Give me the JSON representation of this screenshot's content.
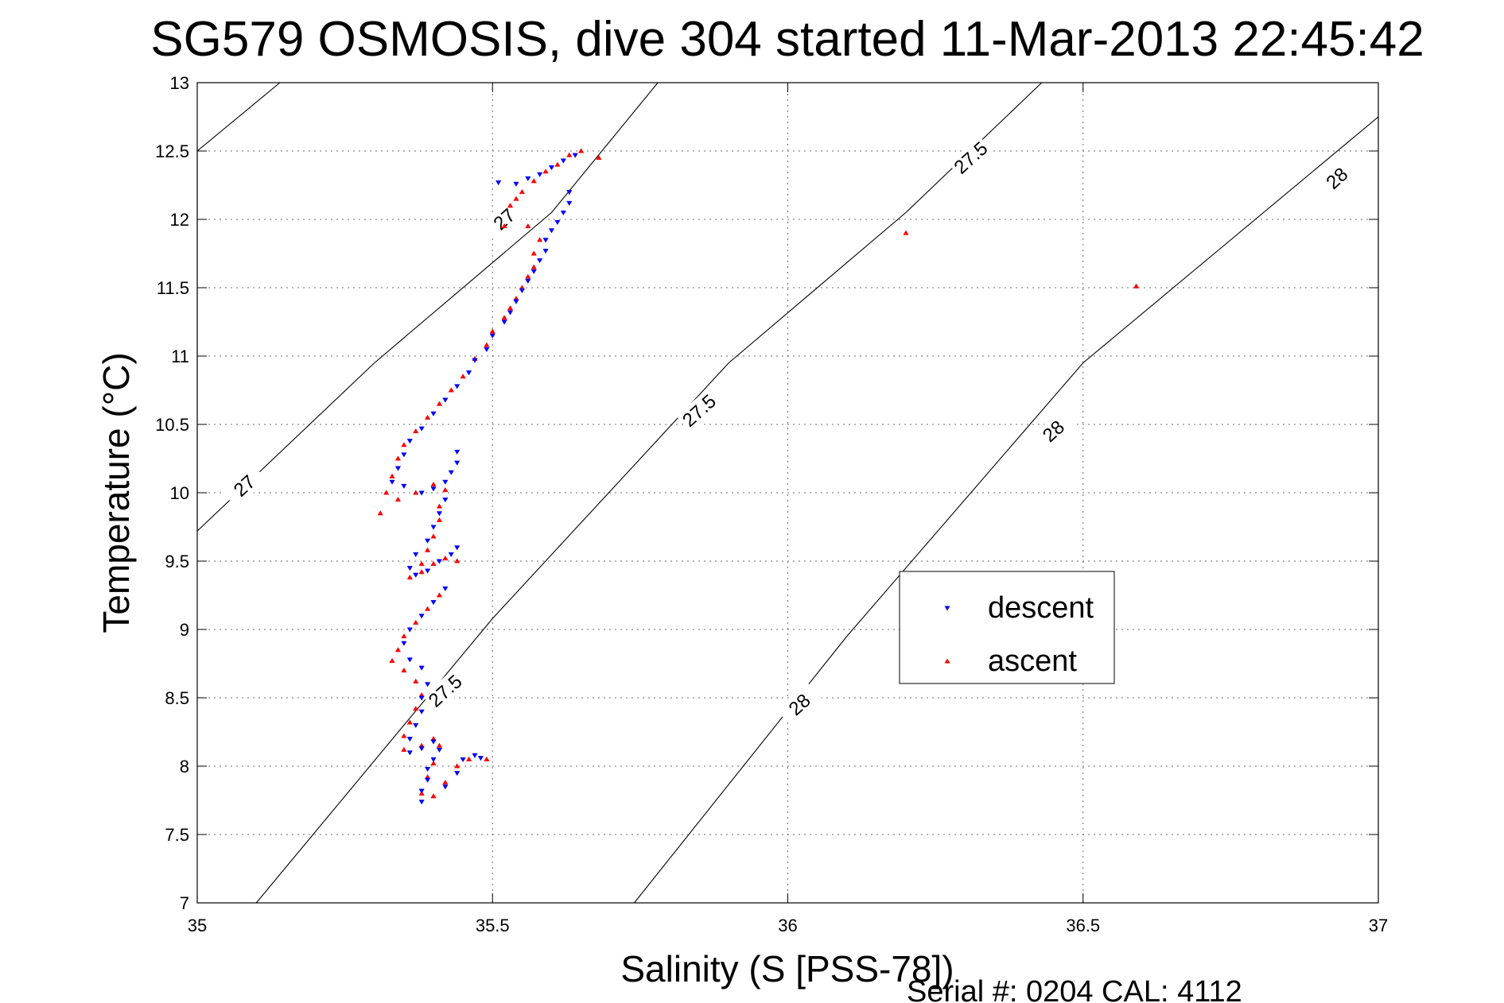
{
  "chart_data": {
    "type": "scatter",
    "title": "SG579 OSMOSIS, dive 304 started 11-Mar-2013 22:45:42",
    "xlabel": "Salinity (S [PSS-78])",
    "ylabel": "Temperature (°C)",
    "xlim": [
      35,
      37
    ],
    "ylim": [
      7,
      13
    ],
    "x_ticks": [
      "35",
      "35.5",
      "36",
      "36.5",
      "37"
    ],
    "y_ticks": [
      "7",
      "7.5",
      "8",
      "8.5",
      "9",
      "9.5",
      "10",
      "10.5",
      "11",
      "11.5",
      "12",
      "12.5",
      "13"
    ],
    "grid": true,
    "legend_position": "center-right",
    "footer": "Serial #: 0204  CAL: 4112",
    "colors": {
      "descent": "#0000ff",
      "ascent": "#ff0000"
    },
    "density_contours": [
      {
        "label": "27",
        "points": [
          [
            35.14,
            13.0
          ],
          [
            35.0,
            12.5
          ],
          [
            35.0,
            9.72
          ],
          [
            35.3,
            10.95
          ],
          [
            35.6,
            12.05
          ],
          [
            35.78,
            13.0
          ]
        ],
        "label_positions": [
          [
            35.08,
            10.05
          ],
          [
            35.52,
            12.0
          ]
        ]
      },
      {
        "label": "27.5",
        "points": [
          [
            35.1,
            7.0
          ],
          [
            35.5,
            9.08
          ],
          [
            35.9,
            10.95
          ],
          [
            36.2,
            12.05
          ],
          [
            36.43,
            13.0
          ]
        ],
        "label_positions": [
          [
            35.85,
            10.6
          ],
          [
            35.42,
            8.55
          ],
          [
            36.31,
            12.45
          ]
        ]
      },
      {
        "label": "28",
        "points": [
          [
            35.74,
            7.0
          ],
          [
            36.1,
            8.95
          ],
          [
            36.5,
            10.95
          ],
          [
            37.0,
            12.75
          ]
        ],
        "label_positions": [
          [
            36.02,
            8.45
          ],
          [
            36.45,
            10.45
          ],
          [
            36.93,
            12.3
          ]
        ]
      }
    ],
    "series": [
      {
        "name": "descent",
        "marker": "triangle-down",
        "points": [
          [
            35.64,
            12.47
          ],
          [
            35.62,
            12.43
          ],
          [
            35.6,
            12.38
          ],
          [
            35.58,
            12.33
          ],
          [
            35.56,
            12.3
          ],
          [
            35.54,
            12.26
          ],
          [
            35.51,
            12.27
          ],
          [
            35.63,
            12.2
          ],
          [
            35.63,
            12.12
          ],
          [
            35.62,
            12.05
          ],
          [
            35.61,
            11.98
          ],
          [
            35.6,
            11.92
          ],
          [
            35.59,
            11.85
          ],
          [
            35.59,
            11.77
          ],
          [
            35.58,
            11.7
          ],
          [
            35.57,
            11.62
          ],
          [
            35.56,
            11.55
          ],
          [
            35.55,
            11.48
          ],
          [
            35.54,
            11.4
          ],
          [
            35.53,
            11.32
          ],
          [
            35.52,
            11.25
          ],
          [
            35.5,
            11.15
          ],
          [
            35.49,
            11.05
          ],
          [
            35.47,
            10.97
          ],
          [
            35.46,
            10.88
          ],
          [
            35.44,
            10.78
          ],
          [
            35.42,
            10.68
          ],
          [
            35.4,
            10.58
          ],
          [
            35.38,
            10.47
          ],
          [
            35.36,
            10.38
          ],
          [
            35.35,
            10.28
          ],
          [
            35.34,
            10.18
          ],
          [
            35.33,
            10.08
          ],
          [
            35.35,
            10.05
          ],
          [
            35.38,
            10.0
          ],
          [
            35.4,
            10.03
          ],
          [
            35.42,
            10.08
          ],
          [
            35.43,
            10.15
          ],
          [
            35.44,
            10.22
          ],
          [
            35.44,
            10.3
          ],
          [
            35.42,
            9.95
          ],
          [
            35.41,
            9.85
          ],
          [
            35.4,
            9.75
          ],
          [
            35.39,
            9.65
          ],
          [
            35.37,
            9.55
          ],
          [
            35.36,
            9.45
          ],
          [
            35.37,
            9.4
          ],
          [
            35.39,
            9.43
          ],
          [
            35.41,
            9.5
          ],
          [
            35.43,
            9.55
          ],
          [
            35.44,
            9.6
          ],
          [
            35.42,
            9.3
          ],
          [
            35.4,
            9.2
          ],
          [
            35.38,
            9.1
          ],
          [
            35.36,
            9.0
          ],
          [
            35.35,
            8.9
          ],
          [
            35.36,
            8.78
          ],
          [
            35.38,
            8.72
          ],
          [
            35.39,
            8.6
          ],
          [
            35.38,
            8.5
          ],
          [
            35.38,
            8.4
          ],
          [
            35.37,
            8.3
          ],
          [
            35.36,
            8.2
          ],
          [
            35.36,
            8.1
          ],
          [
            35.38,
            8.13
          ],
          [
            35.4,
            8.18
          ],
          [
            35.41,
            8.12
          ],
          [
            35.4,
            8.05
          ],
          [
            35.39,
            7.98
          ],
          [
            35.39,
            7.9
          ],
          [
            35.38,
            7.82
          ],
          [
            35.38,
            7.74
          ],
          [
            35.42,
            7.85
          ],
          [
            35.44,
            7.95
          ],
          [
            35.45,
            8.05
          ],
          [
            35.47,
            8.08
          ],
          [
            35.48,
            8.06
          ]
        ]
      },
      {
        "name": "ascent",
        "marker": "triangle-up",
        "points": [
          [
            35.65,
            12.5
          ],
          [
            35.68,
            12.45
          ],
          [
            35.63,
            12.47
          ],
          [
            35.61,
            12.4
          ],
          [
            35.59,
            12.35
          ],
          [
            35.57,
            12.28
          ],
          [
            35.55,
            12.2
          ],
          [
            35.54,
            12.15
          ],
          [
            35.53,
            12.1
          ],
          [
            35.52,
            11.95
          ],
          [
            35.56,
            11.95
          ],
          [
            35.58,
            11.85
          ],
          [
            35.57,
            11.75
          ],
          [
            35.57,
            11.65
          ],
          [
            35.56,
            11.58
          ],
          [
            35.55,
            11.5
          ],
          [
            35.54,
            11.42
          ],
          [
            35.53,
            11.35
          ],
          [
            35.52,
            11.28
          ],
          [
            35.5,
            11.18
          ],
          [
            35.49,
            11.08
          ],
          [
            35.47,
            10.98
          ],
          [
            35.45,
            10.85
          ],
          [
            35.43,
            10.75
          ],
          [
            35.41,
            10.65
          ],
          [
            35.39,
            10.55
          ],
          [
            35.37,
            10.45
          ],
          [
            35.35,
            10.35
          ],
          [
            35.34,
            10.25
          ],
          [
            35.33,
            10.12
          ],
          [
            35.32,
            10.0
          ],
          [
            35.31,
            9.85
          ],
          [
            35.34,
            9.95
          ],
          [
            35.37,
            10.0
          ],
          [
            35.4,
            10.06
          ],
          [
            35.42,
            10.02
          ],
          [
            35.41,
            9.9
          ],
          [
            35.41,
            9.8
          ],
          [
            35.4,
            9.68
          ],
          [
            35.39,
            9.58
          ],
          [
            35.38,
            9.48
          ],
          [
            35.36,
            9.38
          ],
          [
            35.38,
            9.42
          ],
          [
            35.4,
            9.48
          ],
          [
            35.42,
            9.52
          ],
          [
            35.44,
            9.5
          ],
          [
            35.41,
            9.25
          ],
          [
            35.39,
            9.15
          ],
          [
            35.37,
            9.05
          ],
          [
            35.35,
            8.95
          ],
          [
            35.34,
            8.85
          ],
          [
            35.33,
            8.77
          ],
          [
            35.35,
            8.7
          ],
          [
            35.37,
            8.62
          ],
          [
            35.38,
            8.52
          ],
          [
            35.37,
            8.42
          ],
          [
            35.36,
            8.32
          ],
          [
            35.35,
            8.22
          ],
          [
            35.35,
            8.12
          ],
          [
            35.38,
            8.15
          ],
          [
            35.4,
            8.2
          ],
          [
            35.41,
            8.15
          ],
          [
            35.4,
            8.02
          ],
          [
            35.39,
            7.92
          ],
          [
            35.38,
            7.8
          ],
          [
            35.4,
            7.78
          ],
          [
            35.42,
            7.88
          ],
          [
            35.44,
            8.0
          ],
          [
            35.46,
            8.05
          ],
          [
            35.49,
            8.05
          ],
          [
            36.2,
            11.9
          ],
          [
            36.59,
            11.51
          ]
        ]
      }
    ]
  }
}
